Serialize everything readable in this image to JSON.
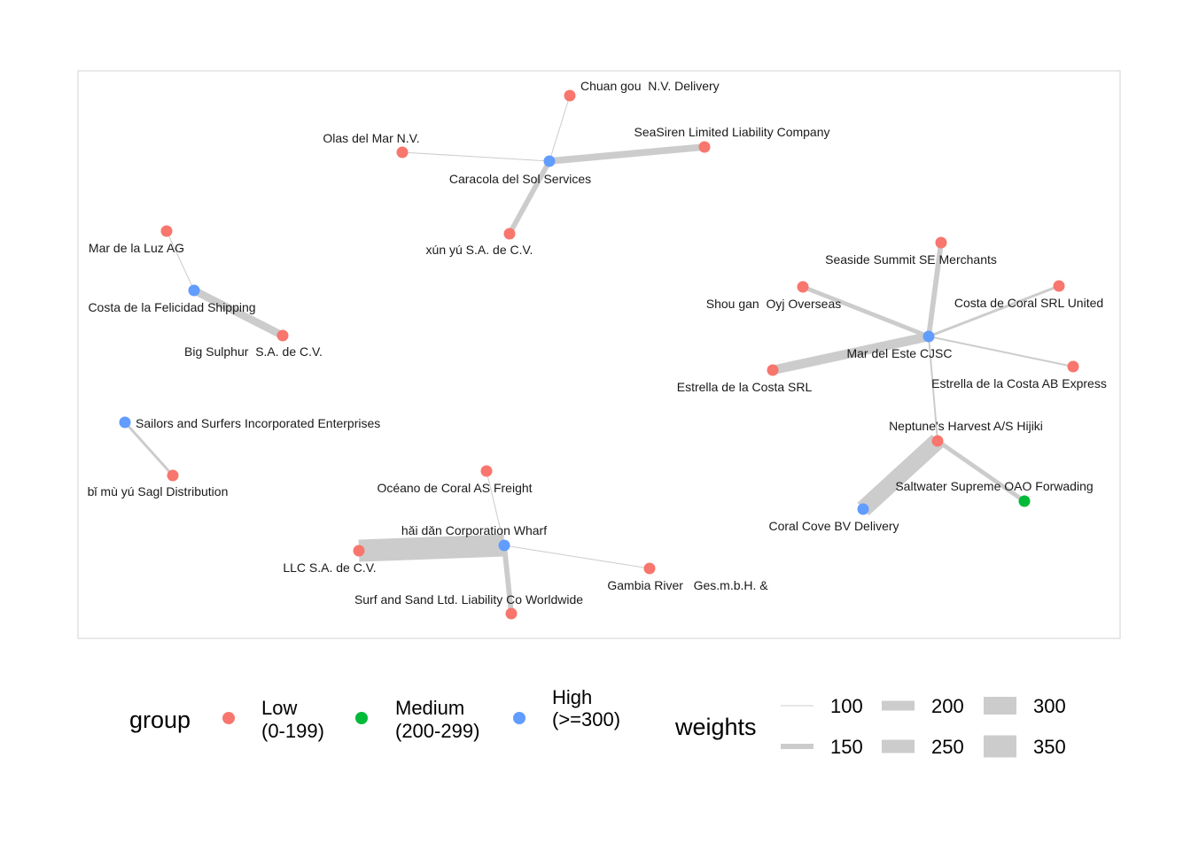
{
  "nodes": [
    {
      "id": "chuan_gou",
      "label": "Chuan gou  N.V. Delivery",
      "group": "low"
    },
    {
      "id": "seasiren",
      "label": "SeaSiren Limited Liability Company",
      "group": "low"
    },
    {
      "id": "olas",
      "label": "Olas del Mar N.V.",
      "group": "low"
    },
    {
      "id": "caracola",
      "label": "Caracola del Sol Services",
      "group": "high"
    },
    {
      "id": "xun_yu",
      "label": "xún yú S.A. de C.V.",
      "group": "low"
    },
    {
      "id": "mar_luz",
      "label": "Mar de la Luz AG",
      "group": "low"
    },
    {
      "id": "costa_felicidad",
      "label": "Costa de la Felicidad Shipping",
      "group": "high"
    },
    {
      "id": "big_sulphur",
      "label": "Big Sulphur  S.A. de C.V.",
      "group": "low"
    },
    {
      "id": "sailors",
      "label": "Sailors and Surfers Incorporated Enterprises",
      "group": "high"
    },
    {
      "id": "bi_mu_yu",
      "label": "bǐ mù yú Sagl Distribution",
      "group": "low"
    },
    {
      "id": "oceano",
      "label": "Océano de Coral AS Freight",
      "group": "low"
    },
    {
      "id": "hai_dan",
      "label": "hǎi dǎn Corporation Wharf",
      "group": "high"
    },
    {
      "id": "llc",
      "label": "LLC S.A. de C.V.",
      "group": "low"
    },
    {
      "id": "gambia",
      "label": "Gambia River   Ges.m.b.H. &",
      "group": "low"
    },
    {
      "id": "surf_sand",
      "label": "Surf and Sand Ltd. Liability Co Worldwide",
      "group": "low"
    },
    {
      "id": "seaside",
      "label": "Seaside Summit SE Merchants",
      "group": "low"
    },
    {
      "id": "shou_gan",
      "label": "Shou gan  Oyj Overseas",
      "group": "low"
    },
    {
      "id": "costa_coral",
      "label": "Costa de Coral SRL United",
      "group": "low"
    },
    {
      "id": "mar_este",
      "label": "Mar del Este CJSC",
      "group": "high"
    },
    {
      "id": "estrella_srl",
      "label": "Estrella de la Costa SRL",
      "group": "low"
    },
    {
      "id": "estrella_ab",
      "label": "Estrella de la Costa AB Express",
      "group": "low"
    },
    {
      "id": "neptune",
      "label": "Neptune's Harvest A/S Hijiki",
      "group": "low"
    },
    {
      "id": "saltwater",
      "label": "Saltwater Supreme OAO Forwading",
      "group": "medium"
    },
    {
      "id": "coral_cove",
      "label": "Coral Cove BV Delivery",
      "group": "high"
    }
  ],
  "edges": [
    {
      "from": "caracola",
      "to": "chuan_gou",
      "weight": 100
    },
    {
      "from": "caracola",
      "to": "olas",
      "weight": 100
    },
    {
      "from": "caracola",
      "to": "seasiren",
      "weight": 170
    },
    {
      "from": "caracola",
      "to": "xun_yu",
      "weight": 150
    },
    {
      "from": "costa_felicidad",
      "to": "mar_luz",
      "weight": 100
    },
    {
      "from": "costa_felicidad",
      "to": "big_sulphur",
      "weight": 180
    },
    {
      "from": "sailors",
      "to": "bi_mu_yu",
      "weight": 120
    },
    {
      "from": "hai_dan",
      "to": "oceano",
      "weight": 100
    },
    {
      "from": "hai_dan",
      "to": "llc",
      "weight": 350
    },
    {
      "from": "hai_dan",
      "to": "gambia",
      "weight": 100
    },
    {
      "from": "hai_dan",
      "to": "surf_sand",
      "weight": 150
    },
    {
      "from": "mar_este",
      "to": "seaside",
      "weight": 150
    },
    {
      "from": "mar_este",
      "to": "shou_gan",
      "weight": 140
    },
    {
      "from": "mar_este",
      "to": "costa_coral",
      "weight": 120
    },
    {
      "from": "mar_este",
      "to": "estrella_srl",
      "weight": 200
    },
    {
      "from": "mar_este",
      "to": "estrella_ab",
      "weight": 110
    },
    {
      "from": "mar_este",
      "to": "neptune",
      "weight": 110
    },
    {
      "from": "neptune",
      "to": "coral_cove",
      "weight": 290
    },
    {
      "from": "neptune",
      "to": "saltwater",
      "weight": 140
    }
  ],
  "legend": {
    "group_title": "group",
    "groups": [
      {
        "key": "low",
        "line1": "Low",
        "line2": "(0-199)",
        "color": "#F8766D"
      },
      {
        "key": "medium",
        "line1": "Medium",
        "line2": "(200-299)",
        "color": "#00BA38"
      },
      {
        "key": "high",
        "line1": "High",
        "line2": "(>=300)",
        "color": "#619CFF"
      }
    ],
    "weights_title": "weights",
    "weights": [
      100,
      150,
      200,
      250,
      300,
      350
    ]
  },
  "colors": {
    "edge": "#cccccc",
    "panel_border": "#d3d3d3"
  }
}
